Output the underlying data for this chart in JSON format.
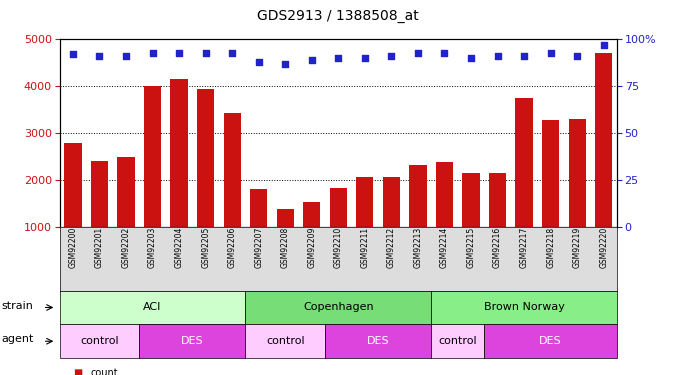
{
  "title": "GDS2913 / 1388508_at",
  "samples": [
    "GSM92200",
    "GSM92201",
    "GSM92202",
    "GSM92203",
    "GSM92204",
    "GSM92205",
    "GSM92206",
    "GSM92207",
    "GSM92208",
    "GSM92209",
    "GSM92210",
    "GSM92211",
    "GSM92212",
    "GSM92213",
    "GSM92214",
    "GSM92215",
    "GSM92216",
    "GSM92217",
    "GSM92218",
    "GSM92219",
    "GSM92220"
  ],
  "counts": [
    2800,
    2400,
    2500,
    4000,
    4150,
    3950,
    3440,
    1800,
    1380,
    1530,
    1820,
    2060,
    2060,
    2320,
    2380,
    2150,
    2150,
    3750,
    3280,
    3300,
    4700
  ],
  "percentiles": [
    92,
    91,
    91,
    93,
    93,
    93,
    93,
    88,
    87,
    89,
    90,
    90,
    91,
    93,
    93,
    90,
    91,
    91,
    93,
    91,
    97
  ],
  "bar_color": "#cc1111",
  "dot_color": "#2222cc",
  "ylim_left": [
    1000,
    5000
  ],
  "ylim_right": [
    0,
    100
  ],
  "yticks_left": [
    1000,
    2000,
    3000,
    4000,
    5000
  ],
  "yticks_right": [
    0,
    25,
    50,
    75,
    100
  ],
  "strain_data": [
    {
      "label": "ACI",
      "start": 0,
      "end": 6,
      "color": "#ccffcc"
    },
    {
      "label": "Copenhagen",
      "start": 7,
      "end": 13,
      "color": "#77dd77"
    },
    {
      "label": "Brown Norway",
      "start": 14,
      "end": 20,
      "color": "#88ee88"
    }
  ],
  "agent_data": [
    {
      "label": "control",
      "start": 0,
      "end": 2,
      "color": "#ffccff",
      "text_color": "black"
    },
    {
      "label": "DES",
      "start": 3,
      "end": 6,
      "color": "#dd44dd",
      "text_color": "white"
    },
    {
      "label": "control",
      "start": 7,
      "end": 9,
      "color": "#ffccff",
      "text_color": "black"
    },
    {
      "label": "DES",
      "start": 10,
      "end": 13,
      "color": "#dd44dd",
      "text_color": "white"
    },
    {
      "label": "control",
      "start": 14,
      "end": 15,
      "color": "#ffccff",
      "text_color": "black"
    },
    {
      "label": "DES",
      "start": 16,
      "end": 20,
      "color": "#dd44dd",
      "text_color": "white"
    }
  ],
  "background_color": "#ffffff",
  "xticklabel_bg": "#dddddd"
}
